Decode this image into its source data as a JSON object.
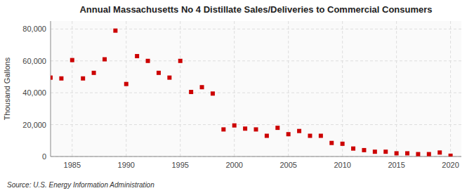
{
  "chart_data": {
    "type": "scatter",
    "title": "Annual Massachusetts No 4 Distillate Sales/Deliveries to Commercial Consumers",
    "y_label": "Thousand Gallons",
    "annotations": [
      "Source: U.S. Energy Information Administration"
    ],
    "x": [
      1983,
      1984,
      1985,
      1986,
      1987,
      1988,
      1989,
      1990,
      1991,
      1992,
      1993,
      1994,
      1995,
      1996,
      1997,
      1998,
      1999,
      2000,
      2001,
      2002,
      2003,
      2004,
      2005,
      2006,
      2007,
      2008,
      2009,
      2010,
      2011,
      2012,
      2013,
      2014,
      2015,
      2016,
      2017,
      2018,
      2019,
      2020
    ],
    "values": [
      49500,
      49000,
      60500,
      49000,
      52500,
      61000,
      79000,
      45500,
      63000,
      60000,
      52500,
      49500,
      60000,
      40500,
      43500,
      39500,
      17000,
      19500,
      17500,
      17000,
      13000,
      18000,
      14000,
      16000,
      13000,
      13000,
      8500,
      8000,
      5000,
      4000,
      3000,
      3000,
      2000,
      2000,
      1500,
      1500,
      2500,
      500
    ],
    "color": "#cc0000",
    "marker": "square",
    "grid": true,
    "xlim": [
      1983,
      2021
    ],
    "ylim": [
      0,
      85000
    ],
    "xticks": [
      1985,
      1990,
      1995,
      2000,
      2005,
      2010,
      2015,
      2020
    ],
    "yticks": [
      0,
      {
        "value": 20000,
        "label": "20,000"
      },
      {
        "value": 40000,
        "label": "40,000"
      },
      {
        "value": 60000,
        "label": "60,000"
      },
      {
        "value": 80000,
        "label": "80,000"
      }
    ]
  }
}
